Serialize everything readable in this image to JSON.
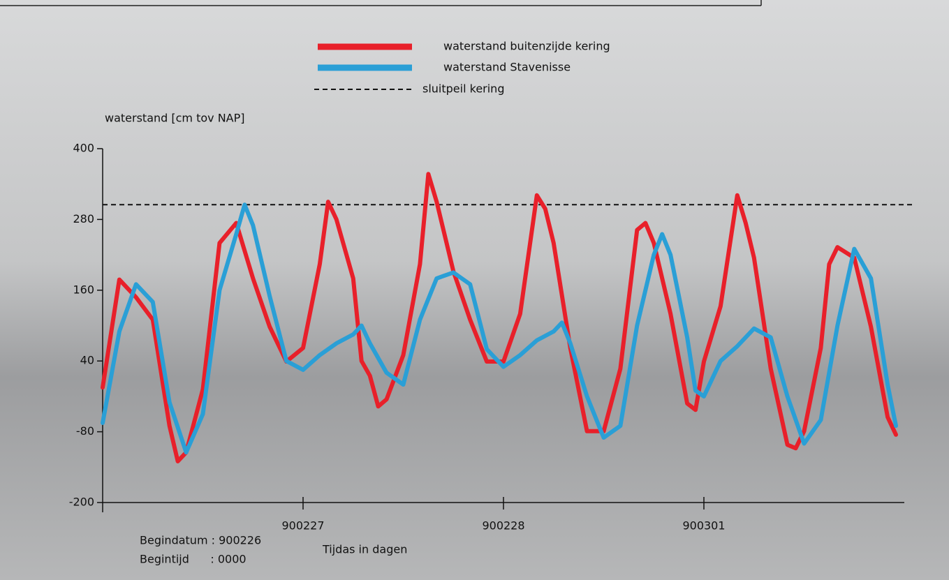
{
  "chart_data": {
    "type": "line",
    "ylabel": "waterstand [cm tov NAP]",
    "xlabel": "Tijdas in dagen",
    "annotations": [
      "Begindatum : 900226",
      "Begintijd      : 0000"
    ],
    "xlim": [
      0,
      96
    ],
    "xticks": [
      {
        "value": 24,
        "label": "900227"
      },
      {
        "value": 48,
        "label": "900228"
      },
      {
        "value": 72,
        "label": "900301"
      }
    ],
    "ylim": [
      -200,
      400
    ],
    "yticks": [
      400,
      280,
      160,
      40,
      -80,
      -200
    ],
    "threshold": {
      "name": "sluitpeil kering",
      "value": 305,
      "color": "#111111"
    },
    "series": [
      {
        "name": "waterstand buitenzijde kering",
        "color": "#e8202a",
        "x": [
          0,
          2,
          4,
          6,
          8,
          9,
          10,
          12,
          14,
          16,
          18,
          20,
          22,
          24,
          26,
          27,
          28,
          30,
          31,
          32,
          33,
          34,
          36,
          38,
          39,
          40,
          42,
          44,
          46,
          48,
          50,
          52,
          53,
          54,
          56,
          58,
          60,
          62,
          64,
          65,
          66,
          68,
          70,
          71,
          72,
          74,
          76,
          77,
          78,
          80,
          82,
          83,
          84,
          86,
          87,
          88,
          90,
          92,
          94,
          95
        ],
        "values": [
          -5,
          178,
          148,
          110,
          -70,
          -130,
          -115,
          -8,
          240,
          274,
          180,
          98,
          39,
          62,
          204,
          310,
          280,
          180,
          40,
          15,
          -37,
          -25,
          50,
          204,
          357,
          310,
          192,
          110,
          39,
          39,
          120,
          321,
          298,
          240,
          62,
          -79,
          -79,
          27,
          262,
          274,
          240,
          120,
          -32,
          -43,
          39,
          133,
          321,
          274,
          215,
          27,
          -102,
          -108,
          -79,
          62,
          204,
          233,
          215,
          98,
          -55,
          -85
        ]
      },
      {
        "name": "waterstand Stavenisse",
        "color": "#2a9fd6",
        "x": [
          0,
          2,
          4,
          6,
          8,
          10,
          12,
          14,
          16,
          17,
          18,
          20,
          22,
          24,
          26,
          28,
          30,
          31,
          32,
          34,
          36,
          38,
          40,
          42,
          44,
          46,
          48,
          50,
          52,
          54,
          55,
          56,
          58,
          60,
          62,
          64,
          66,
          67,
          68,
          70,
          71,
          72,
          74,
          76,
          78,
          80,
          82,
          84,
          86,
          88,
          90,
          92,
          94,
          95
        ],
        "values": [
          -65,
          90,
          170,
          140,
          -30,
          -115,
          -50,
          160,
          255,
          305,
          270,
          150,
          40,
          25,
          50,
          70,
          85,
          100,
          70,
          20,
          0,
          110,
          180,
          190,
          170,
          60,
          30,
          50,
          75,
          90,
          105,
          70,
          -20,
          -90,
          -70,
          100,
          220,
          255,
          220,
          80,
          -10,
          -20,
          40,
          65,
          95,
          80,
          -20,
          -100,
          -60,
          100,
          230,
          180,
          0,
          -70
        ]
      }
    ]
  }
}
